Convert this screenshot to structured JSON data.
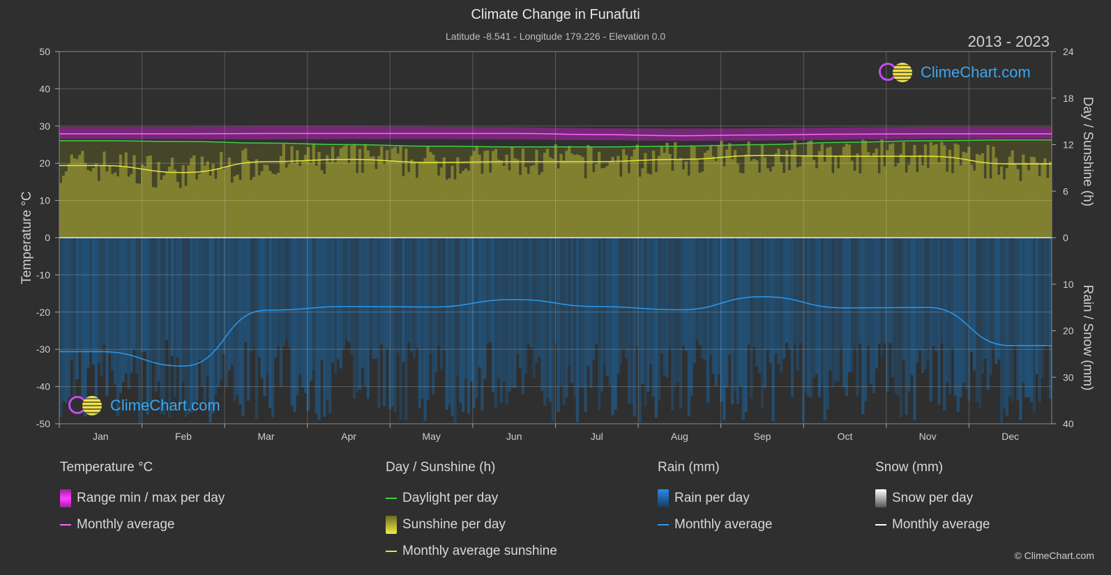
{
  "header": {
    "title": "Climate Change in Funafuti",
    "subtitle": "Latitude -8.541 - Longitude 179.226 - Elevation 0.0",
    "years": "2013 - 2023"
  },
  "brand": {
    "name": "ClimeChart.com",
    "copyright": "© ClimeChart.com"
  },
  "colors": {
    "background": "#2f2f2f",
    "temp_range": "#d020d0",
    "temp_avg": "#ff66ff",
    "daylight": "#40d040",
    "sunshine_fill": "#8a8a30",
    "sunshine_avg": "#e6e63c",
    "rain_fill": "#1e5a8a",
    "rain_avg": "#2a9af0",
    "snow_avg": "#ffffff"
  },
  "chart_data": {
    "type": "line",
    "categories": [
      "Jan",
      "Feb",
      "Mar",
      "Apr",
      "May",
      "Jun",
      "Jul",
      "Aug",
      "Sep",
      "Oct",
      "Nov",
      "Dec"
    ],
    "left_axis": {
      "label": "Temperature °C",
      "ticks": [
        50,
        40,
        30,
        20,
        10,
        0,
        -10,
        -20,
        -30,
        -40,
        -50
      ],
      "range": [
        -50,
        50
      ]
    },
    "right_axis_top": {
      "label": "Day / Sunshine (h)",
      "ticks": [
        24,
        18,
        12,
        6,
        0
      ],
      "range": [
        0,
        24
      ]
    },
    "right_axis_bottom": {
      "label": "Rain / Snow (mm)",
      "ticks": [
        10,
        20,
        30,
        40
      ],
      "range": [
        0,
        40
      ]
    },
    "grid": true,
    "series": [
      {
        "name": "Range min / max per day",
        "axis": "temperature",
        "min": [
          26.5,
          26.5,
          26.4,
          26.5,
          26.5,
          26.4,
          26.2,
          26.0,
          26.1,
          26.3,
          26.5,
          26.6
        ],
        "max": [
          29.8,
          29.8,
          29.9,
          29.9,
          29.8,
          29.7,
          29.4,
          29.3,
          29.4,
          29.6,
          29.8,
          29.8
        ]
      },
      {
        "name": "Monthly average",
        "axis": "temperature",
        "values": [
          27.9,
          27.9,
          28.0,
          28.0,
          28.0,
          28.0,
          27.7,
          27.4,
          27.6,
          27.8,
          27.9,
          27.9
        ]
      },
      {
        "name": "Daylight per day",
        "axis": "sunshine",
        "values": [
          12.5,
          12.4,
          12.2,
          12.0,
          11.8,
          11.7,
          11.7,
          11.8,
          12.0,
          12.3,
          12.5,
          12.6
        ]
      },
      {
        "name": "Monthly average sunshine",
        "axis": "sunshine",
        "values": [
          9.3,
          8.4,
          9.8,
          10.1,
          9.7,
          9.8,
          9.8,
          10.1,
          10.6,
          10.5,
          10.5,
          9.5
        ]
      },
      {
        "name": "Monthly average",
        "axis": "rain",
        "values": [
          24.5,
          27.6,
          15.6,
          14.8,
          14.9,
          13.3,
          14.8,
          15.5,
          12.7,
          15.1,
          15.0,
          23.2
        ]
      }
    ]
  },
  "legend": {
    "temperature": {
      "head": "Temperature °C",
      "items": [
        "Range min / max per day",
        "Monthly average"
      ]
    },
    "sunshine": {
      "head": "Day / Sunshine (h)",
      "items": [
        "Daylight per day",
        "Sunshine per day",
        "Monthly average sunshine"
      ]
    },
    "rain": {
      "head": "Rain (mm)",
      "items": [
        "Rain per day",
        "Monthly average"
      ]
    },
    "snow": {
      "head": "Snow (mm)",
      "items": [
        "Snow per day",
        "Monthly average"
      ]
    }
  }
}
